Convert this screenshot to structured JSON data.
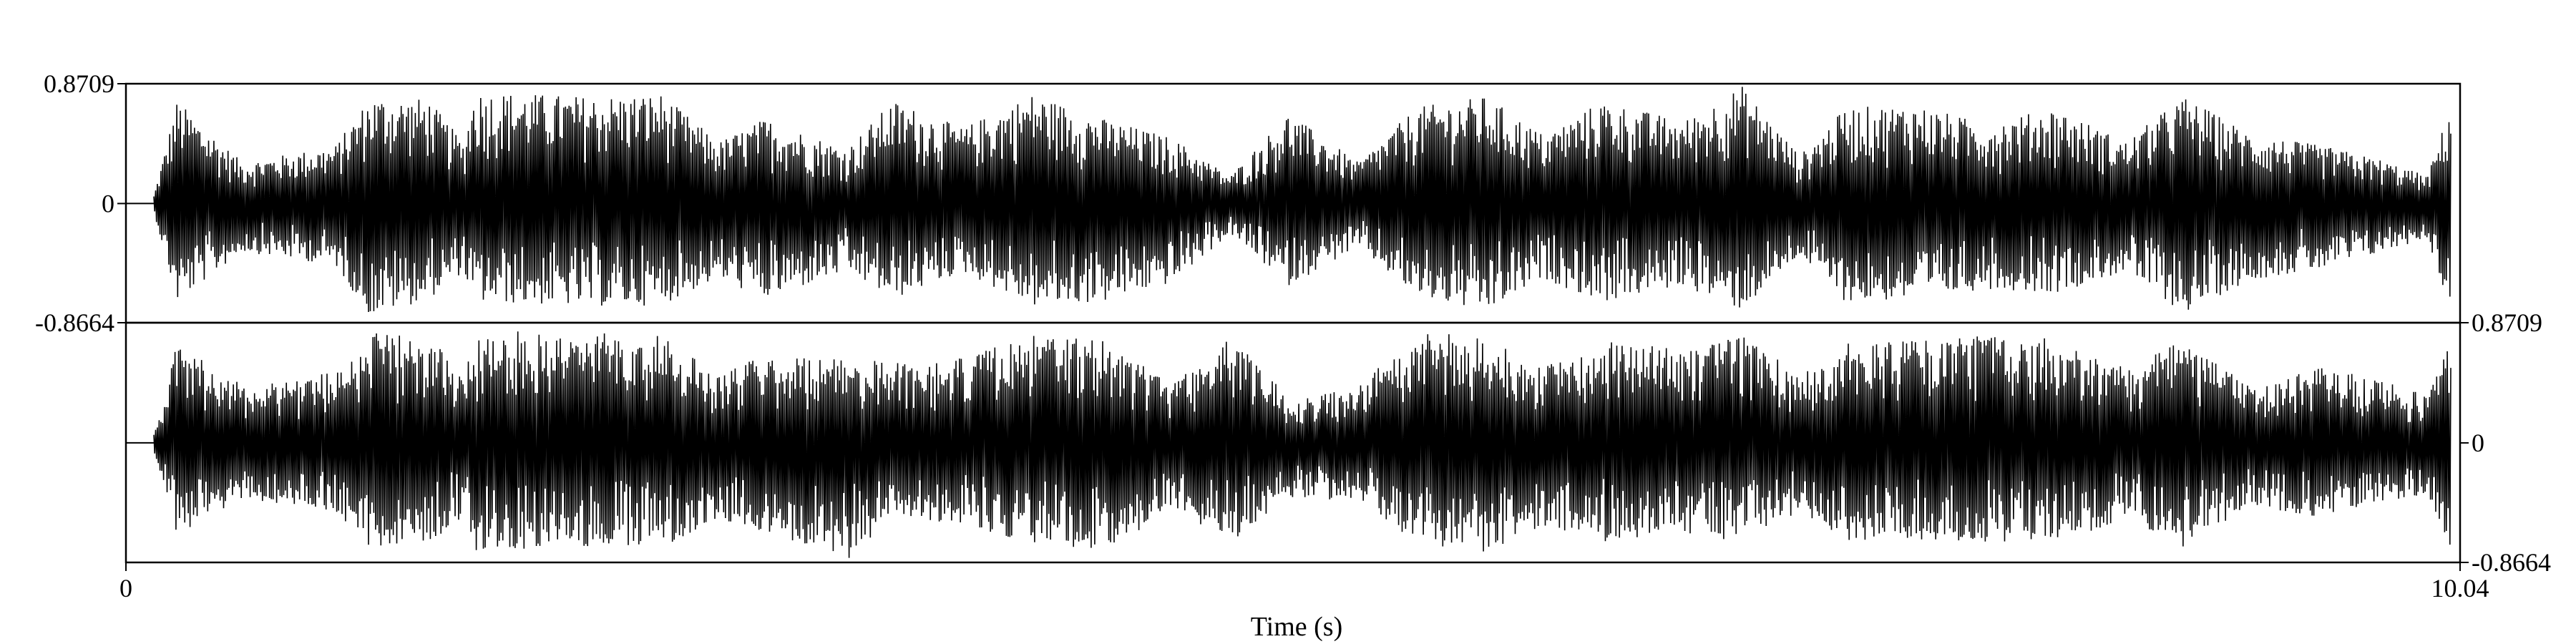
{
  "chart_data": {
    "type": "line",
    "title": "",
    "xlabel": "Time (s)",
    "ylabel": "",
    "xlim": [
      0,
      10.04
    ],
    "x_tick_labels": [
      "0",
      "10.04"
    ],
    "grid": false,
    "legend": "none",
    "series": [
      {
        "ylim": [
          -0.8664,
          0.8709
        ],
        "y_tick_labels": [
          "0.8709",
          "0",
          "-0.8664"
        ],
        "y_tick_side": "left",
        "envelope_segments": [
          {
            "x": 0.12,
            "max": 0.06,
            "min": -0.06
          },
          {
            "x": 0.22,
            "max": 0.75,
            "min": -0.72
          },
          {
            "x": 0.5,
            "max": 0.3,
            "min": -0.35
          },
          {
            "x": 0.9,
            "max": 0.42,
            "min": -0.45
          },
          {
            "x": 1.05,
            "max": 0.78,
            "min": -0.82
          },
          {
            "x": 1.3,
            "max": 0.76,
            "min": -0.7
          },
          {
            "x": 1.45,
            "max": 0.45,
            "min": -0.5
          },
          {
            "x": 1.5,
            "max": 0.82,
            "min": -0.72
          },
          {
            "x": 2.0,
            "max": 0.78,
            "min": -0.75
          },
          {
            "x": 2.3,
            "max": 0.8,
            "min": -0.74
          },
          {
            "x": 2.55,
            "max": 0.45,
            "min": -0.55
          },
          {
            "x": 2.75,
            "max": 0.62,
            "min": -0.7
          },
          {
            "x": 3.1,
            "max": 0.4,
            "min": -0.5
          },
          {
            "x": 3.3,
            "max": 0.75,
            "min": -0.7
          },
          {
            "x": 3.6,
            "max": 0.55,
            "min": -0.5
          },
          {
            "x": 3.9,
            "max": 0.8,
            "min": -0.75
          },
          {
            "x": 4.2,
            "max": 0.62,
            "min": -0.72
          },
          {
            "x": 4.5,
            "max": 0.48,
            "min": -0.58
          },
          {
            "x": 4.75,
            "max": 0.2,
            "min": -0.22
          },
          {
            "x": 5.0,
            "max": 0.66,
            "min": -0.6
          },
          {
            "x": 5.3,
            "max": 0.3,
            "min": -0.32
          },
          {
            "x": 5.55,
            "max": 0.7,
            "min": -0.68
          },
          {
            "x": 5.85,
            "max": 0.78,
            "min": -0.8
          },
          {
            "x": 6.1,
            "max": 0.5,
            "min": -0.55
          },
          {
            "x": 6.35,
            "max": 0.75,
            "min": -0.72
          },
          {
            "x": 6.7,
            "max": 0.6,
            "min": -0.6
          },
          {
            "x": 6.95,
            "max": 0.86,
            "min": -0.78
          },
          {
            "x": 7.2,
            "max": 0.35,
            "min": -0.38
          },
          {
            "x": 7.4,
            "max": 0.7,
            "min": -0.72
          },
          {
            "x": 7.7,
            "max": 0.72,
            "min": -0.7
          },
          {
            "x": 8.0,
            "max": 0.58,
            "min": -0.62
          },
          {
            "x": 8.3,
            "max": 0.7,
            "min": -0.65
          },
          {
            "x": 8.6,
            "max": 0.45,
            "min": -0.5
          },
          {
            "x": 8.85,
            "max": 0.78,
            "min": -0.8
          },
          {
            "x": 9.15,
            "max": 0.5,
            "min": -0.55
          },
          {
            "x": 9.45,
            "max": 0.42,
            "min": -0.48
          },
          {
            "x": 9.7,
            "max": 0.32,
            "min": -0.36
          },
          {
            "x": 9.9,
            "max": 0.2,
            "min": -0.25
          },
          {
            "x": 10.0,
            "max": 0.72,
            "min": -0.8
          }
        ]
      },
      {
        "ylim": [
          -0.8664,
          0.8709
        ],
        "y_tick_labels": [
          "0.8709",
          "0",
          "-0.8664"
        ],
        "y_tick_side": "right",
        "envelope_segments": [
          {
            "x": 0.12,
            "max": 0.06,
            "min": -0.06
          },
          {
            "x": 0.22,
            "max": 0.72,
            "min": -0.68
          },
          {
            "x": 0.5,
            "max": 0.42,
            "min": -0.4
          },
          {
            "x": 0.9,
            "max": 0.52,
            "min": -0.5
          },
          {
            "x": 1.05,
            "max": 0.8,
            "min": -0.75
          },
          {
            "x": 1.3,
            "max": 0.78,
            "min": -0.72
          },
          {
            "x": 1.45,
            "max": 0.5,
            "min": -0.55
          },
          {
            "x": 1.5,
            "max": 0.82,
            "min": -0.78
          },
          {
            "x": 2.0,
            "max": 0.8,
            "min": -0.75
          },
          {
            "x": 2.3,
            "max": 0.78,
            "min": -0.76
          },
          {
            "x": 2.55,
            "max": 0.5,
            "min": -0.55
          },
          {
            "x": 2.75,
            "max": 0.65,
            "min": -0.7
          },
          {
            "x": 3.1,
            "max": 0.6,
            "min": -0.85
          },
          {
            "x": 3.3,
            "max": 0.6,
            "min": -0.55
          },
          {
            "x": 3.6,
            "max": 0.62,
            "min": -0.58
          },
          {
            "x": 3.9,
            "max": 0.78,
            "min": -0.75
          },
          {
            "x": 4.2,
            "max": 0.75,
            "min": -0.78
          },
          {
            "x": 4.5,
            "max": 0.45,
            "min": -0.5
          },
          {
            "x": 4.75,
            "max": 0.78,
            "min": -0.72
          },
          {
            "x": 5.0,
            "max": 0.35,
            "min": -0.4
          },
          {
            "x": 5.3,
            "max": 0.4,
            "min": -0.42
          },
          {
            "x": 5.55,
            "max": 0.82,
            "min": -0.72
          },
          {
            "x": 5.85,
            "max": 0.76,
            "min": -0.8
          },
          {
            "x": 6.1,
            "max": 0.55,
            "min": -0.6
          },
          {
            "x": 6.35,
            "max": 0.74,
            "min": -0.72
          },
          {
            "x": 6.7,
            "max": 0.68,
            "min": -0.66
          },
          {
            "x": 6.95,
            "max": 0.78,
            "min": -0.74
          },
          {
            "x": 7.2,
            "max": 0.5,
            "min": -0.5
          },
          {
            "x": 7.4,
            "max": 0.72,
            "min": -0.72
          },
          {
            "x": 7.7,
            "max": 0.74,
            "min": -0.7
          },
          {
            "x": 8.0,
            "max": 0.82,
            "min": -0.72
          },
          {
            "x": 8.3,
            "max": 0.75,
            "min": -0.7
          },
          {
            "x": 8.6,
            "max": 0.55,
            "min": -0.58
          },
          {
            "x": 8.85,
            "max": 0.74,
            "min": -0.76
          },
          {
            "x": 9.15,
            "max": 0.4,
            "min": -0.45
          },
          {
            "x": 9.45,
            "max": 0.55,
            "min": -0.55
          },
          {
            "x": 9.7,
            "max": 0.45,
            "min": -0.42
          },
          {
            "x": 9.9,
            "max": 0.35,
            "min": -0.38
          },
          {
            "x": 10.0,
            "max": 0.74,
            "min": -0.78
          }
        ]
      }
    ]
  },
  "colors": {
    "waveform": "#000000",
    "frame": "#000000",
    "background": "#ffffff"
  }
}
